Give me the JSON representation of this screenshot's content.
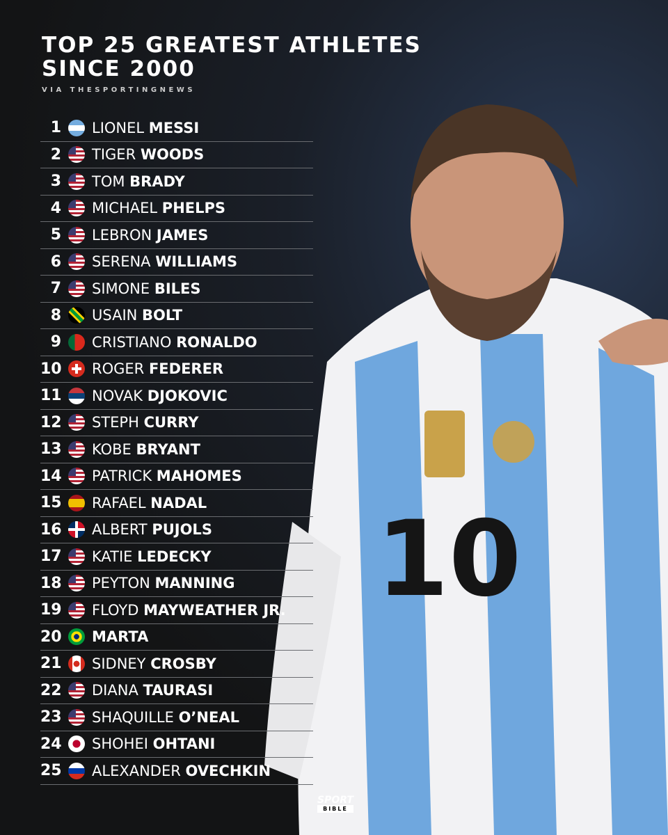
{
  "header": {
    "title_line1": "TOP 25 GREATEST ATHLETES",
    "title_line2": "SINCE 2000",
    "source": "VIA THESPORTINGNEWS"
  },
  "logo": {
    "line1": "SPORT",
    "line2": "BIBLE"
  },
  "photo": {
    "jersey_number": "10"
  },
  "athletes": [
    {
      "rank": "1",
      "first": "LIONEL",
      "last": "MESSI",
      "flag": "argentina"
    },
    {
      "rank": "2",
      "first": "TIGER",
      "last": "WOODS",
      "flag": "usa"
    },
    {
      "rank": "3",
      "first": "TOM",
      "last": "BRADY",
      "flag": "usa"
    },
    {
      "rank": "4",
      "first": "MICHAEL",
      "last": "PHELPS",
      "flag": "usa"
    },
    {
      "rank": "5",
      "first": "LEBRON",
      "last": "JAMES",
      "flag": "usa"
    },
    {
      "rank": "6",
      "first": "SERENA",
      "last": "WILLIAMS",
      "flag": "usa"
    },
    {
      "rank": "7",
      "first": "SIMONE",
      "last": "BILES",
      "flag": "usa"
    },
    {
      "rank": "8",
      "first": "USAIN",
      "last": "BOLT",
      "flag": "jamaica"
    },
    {
      "rank": "9",
      "first": "CRISTIANO",
      "last": "RONALDO",
      "flag": "portugal"
    },
    {
      "rank": "10",
      "first": "ROGER",
      "last": "FEDERER",
      "flag": "switzerland"
    },
    {
      "rank": "11",
      "first": "NOVAK",
      "last": "DJOKOVIC",
      "flag": "serbia"
    },
    {
      "rank": "12",
      "first": "STEPH",
      "last": "CURRY",
      "flag": "usa"
    },
    {
      "rank": "13",
      "first": "KOBE",
      "last": "BRYANT",
      "flag": "usa"
    },
    {
      "rank": "14",
      "first": "PATRICK",
      "last": "MAHOMES",
      "flag": "usa"
    },
    {
      "rank": "15",
      "first": "RAFAEL",
      "last": "NADAL",
      "flag": "spain"
    },
    {
      "rank": "16",
      "first": "ALBERT",
      "last": "PUJOLS",
      "flag": "dominican-republic"
    },
    {
      "rank": "17",
      "first": "KATIE",
      "last": "LEDECKY",
      "flag": "usa"
    },
    {
      "rank": "18",
      "first": "PEYTON",
      "last": "MANNING",
      "flag": "usa"
    },
    {
      "rank": "19",
      "first": "FLOYD",
      "last": "MAYWEATHER JR.",
      "flag": "usa"
    },
    {
      "rank": "20",
      "first": "",
      "last": "MARTA",
      "flag": "brazil"
    },
    {
      "rank": "21",
      "first": "SIDNEY",
      "last": "CROSBY",
      "flag": "canada"
    },
    {
      "rank": "22",
      "first": "DIANA",
      "last": "TAURASI",
      "flag": "usa"
    },
    {
      "rank": "23",
      "first": "SHAQUILLE",
      "last": "O’NEAL",
      "flag": "usa"
    },
    {
      "rank": "24",
      "first": "SHOHEI",
      "last": "OHTANI",
      "flag": "japan"
    },
    {
      "rank": "25",
      "first": "ALEXANDER",
      "last": "OVECHKIN",
      "flag": "russia"
    }
  ]
}
